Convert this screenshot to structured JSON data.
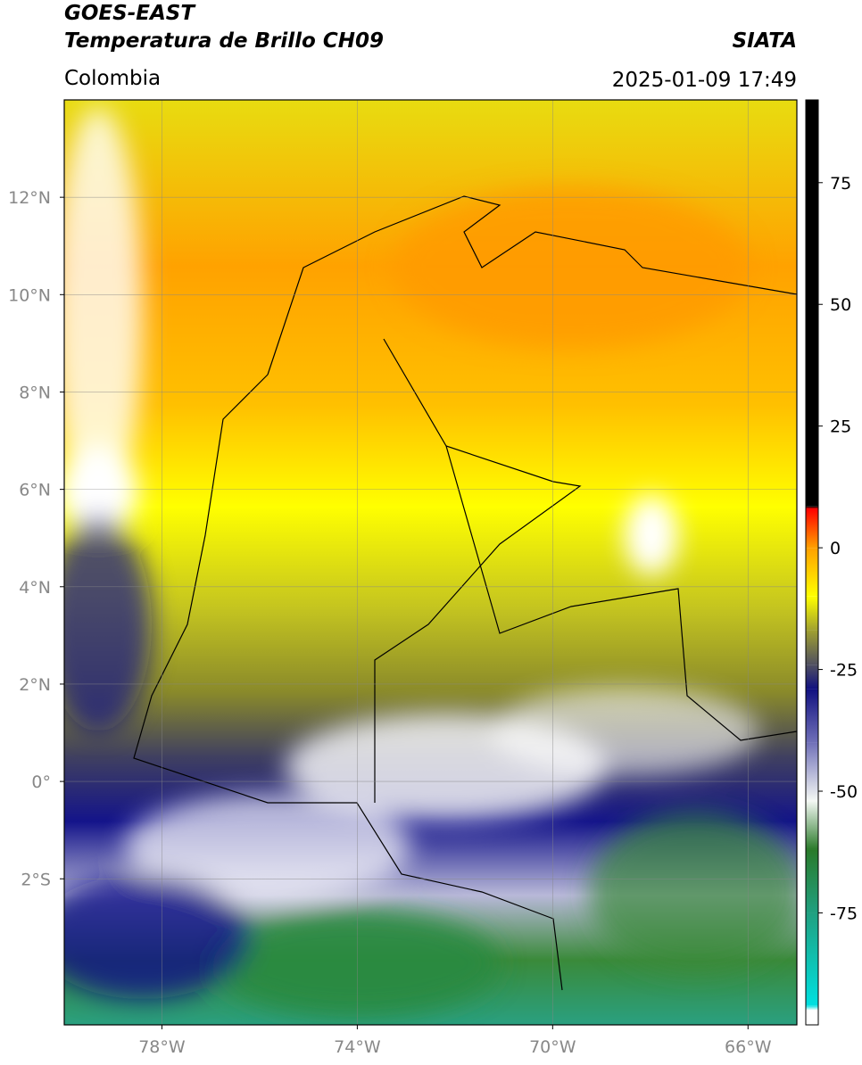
{
  "header": {
    "title": "GOES-EAST",
    "subtitle": "Temperatura de Brillo CH09",
    "source": "SIATA",
    "region": "Colombia",
    "datetime": "2025-01-09 17:49"
  },
  "map": {
    "xlim": [
      -80,
      -65
    ],
    "ylim": [
      -5,
      14
    ],
    "grid": true,
    "xticks": [
      {
        "value": -78,
        "label": "78°W"
      },
      {
        "value": -74,
        "label": "74°W"
      },
      {
        "value": -70,
        "label": "70°W"
      },
      {
        "value": -66,
        "label": "66°W"
      }
    ],
    "yticks": [
      {
        "value": 12,
        "label": "12°N"
      },
      {
        "value": 10,
        "label": "10°N"
      },
      {
        "value": 8,
        "label": "8°N"
      },
      {
        "value": 6,
        "label": "6°N"
      },
      {
        "value": 4,
        "label": "4°N"
      },
      {
        "value": 2,
        "label": "2°N"
      },
      {
        "value": 0,
        "label": "0°"
      },
      {
        "value": -2,
        "label": "2°S"
      }
    ]
  },
  "colorbar": {
    "lim": [
      -98,
      92
    ],
    "ticks": [
      75,
      50,
      25,
      0,
      -25,
      -50,
      -75
    ],
    "stops": [
      {
        "value": -98,
        "color": "#ffffff"
      },
      {
        "value": -95,
        "color": "#ffffff"
      },
      {
        "value": -94,
        "color": "#00e0e0"
      },
      {
        "value": -75,
        "color": "#20a080"
      },
      {
        "value": -62,
        "color": "#2a7a2a"
      },
      {
        "value": -52,
        "color": "#f4f8f4"
      },
      {
        "value": -40,
        "color": "#7070b8"
      },
      {
        "value": -29,
        "color": "#101080"
      },
      {
        "value": -24,
        "color": "#505060"
      },
      {
        "value": -17,
        "color": "#a0a030"
      },
      {
        "value": -10,
        "color": "#ffff00"
      },
      {
        "value": 0,
        "color": "#ffa000"
      },
      {
        "value": 8,
        "color": "#ff0000"
      },
      {
        "value": 8.5,
        "color": "#000000"
      },
      {
        "value": 92,
        "color": "#000000"
      }
    ]
  }
}
